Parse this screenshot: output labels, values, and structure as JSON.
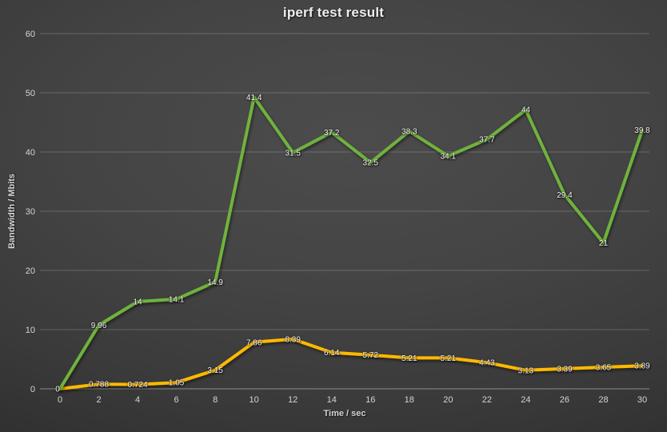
{
  "chart": {
    "title": "iperf test result",
    "x_axis_title": "Time / sec",
    "y_axis_title": "Bandwidth / Mbits"
  },
  "chart_data": {
    "type": "line",
    "stacked": true,
    "title": "iperf test result",
    "xlabel": "Time / sec",
    "ylabel": "Bandwidth / Mbits",
    "x": [
      0,
      2,
      4,
      6,
      8,
      10,
      12,
      14,
      16,
      18,
      20,
      22,
      24,
      26,
      28,
      30
    ],
    "xlim": [
      0,
      30
    ],
    "ylim": [
      0,
      60
    ],
    "yticks": [
      0,
      10,
      20,
      30,
      40,
      50,
      60
    ],
    "grid": true,
    "legend": false,
    "label_position": "center",
    "background": "#3f3f3f",
    "series": [
      {
        "name": "orange-series",
        "color": "#FFB900",
        "values": [
          0,
          0.788,
          0.724,
          1.05,
          3.15,
          7.86,
          8.39,
          6.14,
          5.72,
          5.21,
          5.21,
          4.43,
          3.13,
          3.39,
          3.65,
          3.89
        ],
        "labels": [
          "",
          "0.788",
          "0.724",
          "1.05",
          "3.15",
          "7.86",
          "8.39",
          "6.14",
          "5.72",
          "5.21",
          "5.21",
          "4.43",
          "3.13",
          "3.39",
          "3.65",
          "3.89"
        ]
      },
      {
        "name": "green-series",
        "color": "#6FB23C",
        "values": [
          0,
          9.96,
          14,
          14.1,
          14.9,
          41.4,
          31.5,
          37.2,
          32.5,
          38.3,
          34.1,
          37.7,
          44,
          29.4,
          21,
          39.8
        ],
        "labels": [
          "0",
          "9.96",
          "14",
          "14.1",
          "14.9",
          "41.4",
          "31.5",
          "37.2",
          "32.5",
          "38.3",
          "34.1",
          "37.7",
          "44",
          "29.4",
          "21",
          "39.8"
        ]
      }
    ]
  }
}
